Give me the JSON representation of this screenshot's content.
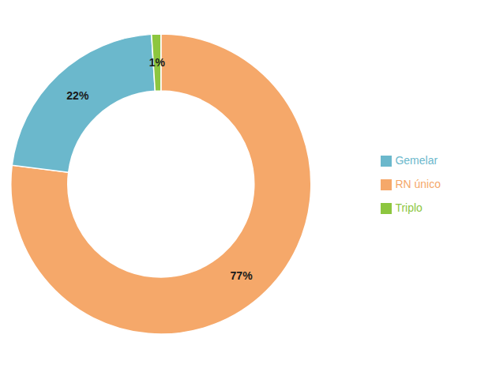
{
  "chart_data": {
    "type": "pie",
    "categories": [
      "RN único",
      "Gemelar",
      "Triplo"
    ],
    "values": [
      77,
      22,
      1
    ],
    "value_labels": [
      "77%",
      "22%",
      "1%"
    ],
    "colors": [
      "#F5A86A",
      "#6BB8CC",
      "#8DC63F"
    ],
    "data_labels": true,
    "legend": "right"
  }
}
